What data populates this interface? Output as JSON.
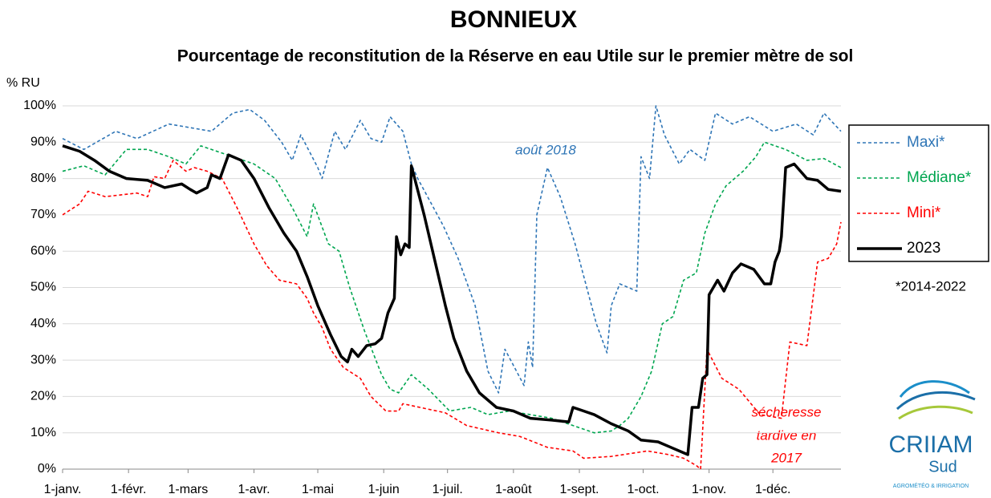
{
  "chart_data": {
    "type": "line",
    "title": "BONNIEUX",
    "subtitle": "Pourcentage de reconstitution de la Réserve en eau Utile sur le premier mètre de sol",
    "y_label": "% RU",
    "xlim": [
      0,
      366
    ],
    "xticks": [
      {
        "value": 0,
        "label": "1-janv."
      },
      {
        "value": 31,
        "label": "1-févr."
      },
      {
        "value": 59,
        "label": "1-mars"
      },
      {
        "value": 90,
        "label": "1-avr."
      },
      {
        "value": 120,
        "label": "1-mai"
      },
      {
        "value": 151,
        "label": "1-juin"
      },
      {
        "value": 181,
        "label": "1-juil."
      },
      {
        "value": 212,
        "label": "1-août"
      },
      {
        "value": 243,
        "label": "1-sept."
      },
      {
        "value": 273,
        "label": "1-oct."
      },
      {
        "value": 304,
        "label": "1-nov."
      },
      {
        "value": 334,
        "label": "1-déc."
      }
    ],
    "ylim": [
      0,
      100
    ],
    "yticks": [
      {
        "value": 0,
        "label": "0%"
      },
      {
        "value": 10,
        "label": "10%"
      },
      {
        "value": 20,
        "label": "20%"
      },
      {
        "value": 30,
        "label": "30%"
      },
      {
        "value": 40,
        "label": "40%"
      },
      {
        "value": 50,
        "label": "50%"
      },
      {
        "value": 60,
        "label": "60%"
      },
      {
        "value": 70,
        "label": "70%"
      },
      {
        "value": 80,
        "label": "80%"
      },
      {
        "value": 90,
        "label": "90%"
      },
      {
        "value": 100,
        "label": "100%"
      }
    ],
    "grid": true,
    "legend": "right",
    "series": [
      {
        "name": "Maxi*",
        "color": "#2e75b6",
        "dashed": true,
        "x": [
          0,
          10,
          25,
          35,
          50,
          70,
          80,
          88,
          95,
          103,
          108,
          112,
          120,
          122,
          128,
          133,
          140,
          145,
          150,
          154,
          160,
          164,
          167,
          179,
          186,
          194,
          200,
          205,
          208,
          217,
          219,
          221,
          223,
          228,
          234,
          241,
          251,
          256,
          258,
          262,
          270,
          272,
          276,
          279,
          283,
          290,
          295,
          302,
          307,
          315,
          323,
          334,
          345,
          353,
          358,
          366
        ],
        "values": [
          91,
          88,
          93,
          91,
          95,
          93,
          98,
          99,
          96,
          90,
          85,
          92,
          83,
          80,
          93,
          88,
          96,
          91,
          90,
          97,
          93,
          84,
          80,
          67,
          58,
          45,
          27,
          21,
          33,
          23,
          35,
          28,
          70,
          83,
          75,
          62,
          40,
          32,
          45,
          51,
          49,
          86,
          80,
          100,
          92,
          84,
          88,
          85,
          98,
          95,
          97,
          93,
          95,
          92,
          98,
          93
        ]
      },
      {
        "name": "Médiane*",
        "color": "#00a650",
        "dashed": true,
        "x": [
          0,
          10,
          20,
          30,
          40,
          50,
          58,
          65,
          75,
          90,
          100,
          108,
          115,
          118,
          125,
          130,
          135,
          142,
          150,
          154,
          158,
          164,
          172,
          182,
          192,
          200,
          210,
          220,
          230,
          240,
          250,
          258,
          262,
          266,
          272,
          277,
          282,
          287,
          292,
          298,
          302,
          307,
          312,
          320,
          326,
          330,
          340,
          350,
          358,
          366
        ],
        "values": [
          82,
          83.5,
          81,
          88,
          88,
          86,
          84,
          89,
          87,
          84,
          80,
          72,
          64,
          73,
          62,
          60,
          50,
          38,
          26,
          22,
          21,
          26,
          22,
          16,
          17,
          15,
          16,
          15,
          14,
          12,
          10,
          10.5,
          12,
          14,
          20,
          27,
          40,
          42,
          52,
          54,
          65,
          73,
          78,
          82,
          86,
          90,
          88,
          85,
          85.5,
          83
        ]
      },
      {
        "name": "Mini*",
        "color": "#ff0000",
        "dashed": true,
        "x": [
          0,
          8,
          12,
          20,
          35,
          40,
          43,
          48,
          52,
          58,
          62,
          68,
          75,
          82,
          90,
          96,
          102,
          110,
          115,
          118,
          122,
          126,
          132,
          140,
          145,
          152,
          158,
          160,
          168,
          180,
          190,
          205,
          215,
          228,
          240,
          245,
          258,
          275,
          285,
          292,
          298,
          300,
          303,
          310,
          318,
          328,
          338,
          342,
          350,
          355,
          360,
          364,
          366
        ],
        "values": [
          70,
          73,
          76.5,
          75,
          76,
          75,
          80.5,
          80,
          85,
          82,
          83,
          82,
          80,
          72,
          62,
          56,
          52,
          51,
          47,
          43,
          39,
          33,
          28,
          25,
          20,
          16,
          16,
          18,
          17,
          15.5,
          12,
          10,
          9,
          6,
          5,
          3,
          3.5,
          5,
          4,
          3,
          1,
          0,
          33,
          25,
          22,
          15,
          14,
          35,
          34,
          57,
          58,
          62,
          68
        ]
      },
      {
        "name": "2023",
        "color": "#000000",
        "dashed": false,
        "x": [
          0,
          8,
          15,
          22,
          30,
          40,
          48,
          56,
          60,
          63,
          68,
          70,
          74,
          78,
          84,
          90,
          97,
          104,
          110,
          115,
          120,
          126,
          131,
          134,
          136,
          139,
          143,
          147,
          150,
          153,
          156,
          157,
          159,
          161,
          163,
          164,
          170,
          176,
          180,
          184,
          190,
          196,
          204,
          212,
          220,
          230,
          238,
          240,
          245,
          250,
          258,
          266,
          272,
          280,
          286,
          292,
          294,
          296,
          299,
          301,
          303,
          304,
          306,
          308,
          311,
          315,
          319,
          325,
          330,
          333,
          335,
          337,
          338,
          340,
          344,
          350,
          355,
          360,
          366
        ],
        "values": [
          89,
          87.5,
          85,
          82,
          80,
          79.5,
          77.5,
          78.5,
          77,
          76,
          77.5,
          81,
          80,
          86.5,
          85,
          80,
          72,
          65,
          60,
          53,
          45,
          37,
          31,
          29.5,
          33,
          31,
          34,
          34.5,
          36,
          43,
          47,
          64,
          59,
          62,
          61,
          83.5,
          70,
          55,
          45,
          36,
          27,
          21,
          17,
          16,
          14,
          13.5,
          13,
          17,
          16,
          15,
          12.5,
          10.5,
          8,
          7.5,
          6,
          4.5,
          4,
          17,
          17,
          25,
          26,
          48,
          50,
          52,
          49,
          54,
          56.5,
          55,
          51,
          51,
          57,
          60,
          64,
          83,
          84,
          80,
          79.5,
          77,
          76.5
        ]
      }
    ],
    "annotations": [
      {
        "text": "août 2018",
        "color": "#2e75b6"
      },
      {
        "text": "sécheresse",
        "color": "#ff0000"
      },
      {
        "text": "tardive en",
        "color": "#ff0000"
      },
      {
        "text": "2017",
        "color": "#ff0000"
      },
      {
        "text": "*2014-2022",
        "color": "#000000"
      }
    ],
    "logo": {
      "name": "CRIIAM",
      "sub": "Sud",
      "tagline": "AGROMÉTÉO & IRRIGATION"
    }
  }
}
